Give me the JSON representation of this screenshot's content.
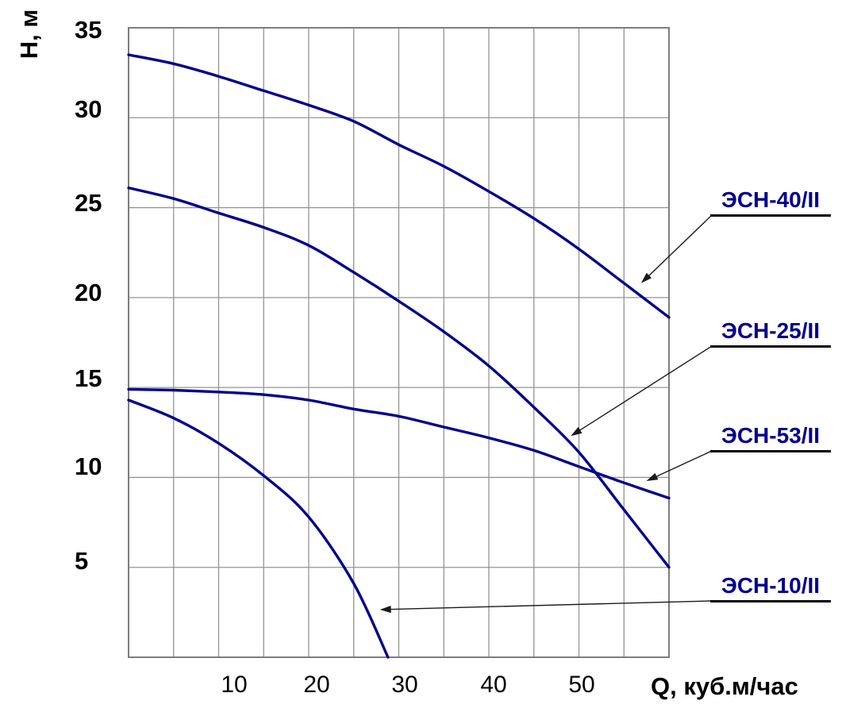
{
  "figure": {
    "y_axis_title": "Н, м",
    "x_axis_title": "Q, куб.м/час",
    "y_tick_labels": [
      "35",
      "30",
      "25",
      "20",
      "15",
      "10",
      "5"
    ],
    "x_tick_labels": [
      "10",
      "20",
      "30",
      "40",
      "50"
    ]
  },
  "chart_data": {
    "type": "line",
    "title": "",
    "xlabel": "Q, куб.м/час",
    "ylabel": "Н, м",
    "xlim": [
      0,
      60
    ],
    "ylim": [
      0,
      35
    ],
    "grid": true,
    "x_grid_step": 5,
    "y_grid_step": 5,
    "x_labeled_ticks": [
      10,
      20,
      30,
      40,
      50
    ],
    "y_labeled_ticks": [
      35,
      30,
      25,
      20,
      15,
      10,
      5
    ],
    "legend_position": "annotations-right",
    "series": [
      {
        "name": "ЭСН-40/II",
        "points": [
          [
            0,
            33.5
          ],
          [
            5,
            33.0
          ],
          [
            10,
            32.3
          ],
          [
            15,
            31.5
          ],
          [
            20,
            30.7
          ],
          [
            25,
            29.8
          ],
          [
            30,
            28.5
          ],
          [
            35,
            27.3
          ],
          [
            40,
            25.9
          ],
          [
            45,
            24.4
          ],
          [
            50,
            22.7
          ],
          [
            55,
            20.8
          ],
          [
            60,
            18.9
          ]
        ]
      },
      {
        "name": "ЭСН-25/II",
        "points": [
          [
            0,
            26.1
          ],
          [
            5,
            25.5
          ],
          [
            10,
            24.7
          ],
          [
            15,
            23.9
          ],
          [
            20,
            22.9
          ],
          [
            25,
            21.4
          ],
          [
            30,
            19.8
          ],
          [
            35,
            18.1
          ],
          [
            40,
            16.2
          ],
          [
            45,
            13.9
          ],
          [
            50,
            11.4
          ],
          [
            55,
            8.2
          ],
          [
            60,
            5.0
          ]
        ]
      },
      {
        "name": "ЭСН-53/II",
        "points": [
          [
            0,
            14.9
          ],
          [
            5,
            14.85
          ],
          [
            10,
            14.75
          ],
          [
            15,
            14.6
          ],
          [
            20,
            14.3
          ],
          [
            25,
            13.8
          ],
          [
            30,
            13.4
          ],
          [
            35,
            12.8
          ],
          [
            40,
            12.2
          ],
          [
            45,
            11.5
          ],
          [
            50,
            10.6
          ],
          [
            55,
            9.7
          ],
          [
            60,
            8.85
          ]
        ]
      },
      {
        "name": "ЭСН-10/II",
        "points": [
          [
            0,
            14.3
          ],
          [
            5,
            13.3
          ],
          [
            10,
            11.9
          ],
          [
            15,
            10.1
          ],
          [
            20,
            7.8
          ],
          [
            25,
            4.1
          ],
          [
            28.8,
            0
          ]
        ]
      }
    ],
    "annotations": [
      {
        "label": "ЭСН-40/II",
        "arrow_tip": {
          "q": 56.9,
          "h": 20.8
        }
      },
      {
        "label": "ЭСН-25/II",
        "arrow_tip": {
          "q": 49.1,
          "h": 12.3
        }
      },
      {
        "label": "ЭСН-53/II",
        "arrow_tip": {
          "q": 57.5,
          "h": 9.8
        }
      },
      {
        "label": "ЭСН-10/II",
        "arrow_tip": {
          "q": 27.9,
          "h": 2.65
        }
      }
    ],
    "colors": {
      "curve": "#00008B",
      "annotation_text": "#00008B",
      "grid": "#949494",
      "border": "#7d7d7d",
      "leader": "#1a1a1a",
      "text": "#000000",
      "background": "#ffffff"
    }
  }
}
